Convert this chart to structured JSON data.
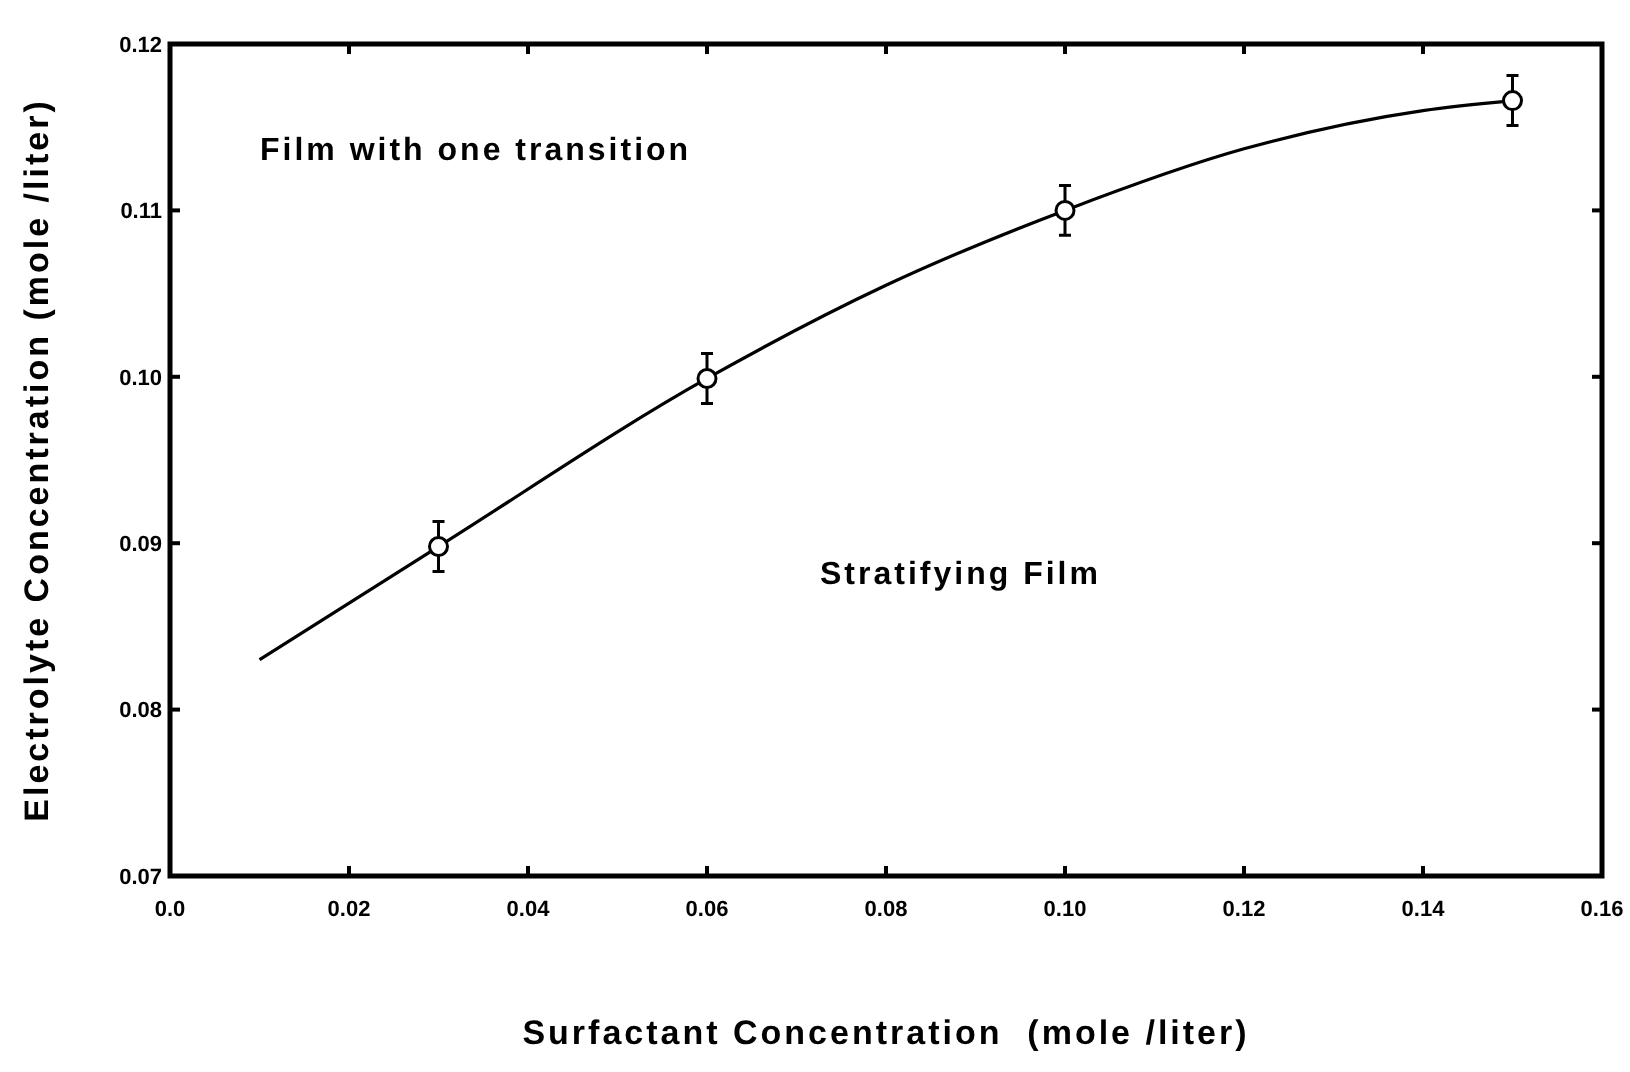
{
  "chart_data": {
    "type": "scatter",
    "xlabel": "Surfactant Concentration  (mole /liter)",
    "ylabel": "Electrolyte Concentration (mole /liter)",
    "annotations": [
      "Film with one transition",
      "Stratifying Film"
    ],
    "xlim": [
      0,
      0.16
    ],
    "xticks": [
      {
        "value": 0,
        "label": "0.0"
      },
      0.02,
      0.04,
      0.06,
      0.08,
      {
        "value": 0.1,
        "label": "0.10"
      },
      0.12,
      0.14,
      0.16
    ],
    "ylim": [
      0.07,
      0.12
    ],
    "yticks": [
      0.07,
      0.08,
      0.09,
      {
        "value": 0.1,
        "label": "0.10"
      },
      0.11,
      0.12
    ],
    "grid": false,
    "series": [
      {
        "type": "line",
        "color": "#000000",
        "marker": "none",
        "x": [
          0.01,
          0.03,
          0.06,
          0.08,
          0.1,
          0.12,
          0.14,
          0.15
        ],
        "values": [
          0.083,
          0.0898,
          0.0999,
          0.1055,
          0.11,
          0.1137,
          0.116,
          0.1166
        ]
      },
      {
        "color": "#000000",
        "marker": "circle",
        "x": [
          0.03,
          0.06,
          0.1,
          0.15
        ],
        "values": [
          0.0898,
          0.0999,
          0.11,
          0.1166
        ],
        "errors": [
          0.0015,
          0.0015,
          0.0015,
          0.0015
        ]
      }
    ]
  }
}
